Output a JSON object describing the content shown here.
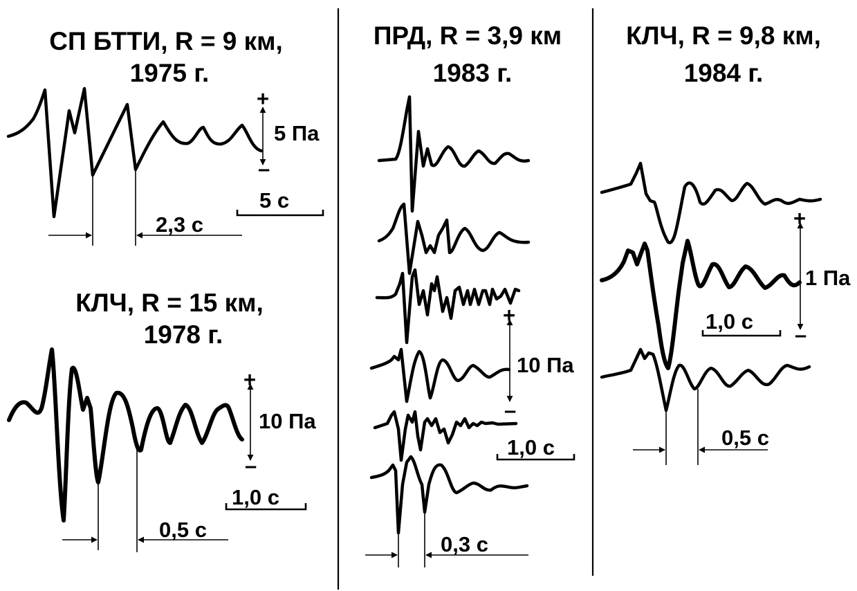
{
  "colors": {
    "ink": "#000000",
    "background": "#ffffff"
  },
  "panels": {
    "left_top": {
      "title_line1": "СП БТТИ, R = 9 км,",
      "title_line2": "1975 г.",
      "amplitude_label": "5 Па",
      "plus": "+",
      "minus": "–",
      "time_scale": "5 с",
      "period_label": "2,3 с"
    },
    "left_bottom": {
      "title_line1": "КЛЧ, R = 15 км,",
      "title_line2": "1978 г.",
      "amplitude_label": "10 Па",
      "plus": "+",
      "minus": "–",
      "time_scale": "1,0 с",
      "period_label": "0,5 с"
    },
    "middle": {
      "title_line1": "ПРД, R = 3,9 км",
      "title_line2": "1983 г.",
      "amplitude_label": "10 Па",
      "plus": "+",
      "minus": "–",
      "time_scale": "1,0 с",
      "period_label": "0,3 с"
    },
    "right": {
      "title_line1": "КЛЧ, R = 9,8 км,",
      "title_line2": "1984 г.",
      "amplitude_label": "1 Па",
      "plus": "+",
      "minus": "–",
      "time_scale": "1,0 с",
      "period_label": "0,5 с"
    }
  }
}
